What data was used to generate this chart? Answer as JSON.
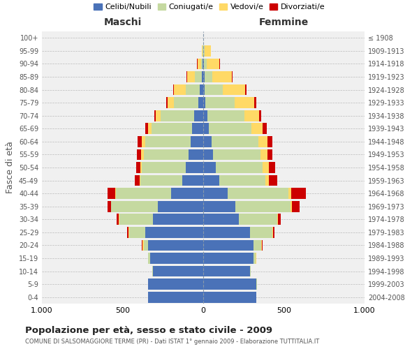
{
  "age_groups": [
    "0-4",
    "5-9",
    "10-14",
    "15-19",
    "20-24",
    "25-29",
    "30-34",
    "35-39",
    "40-44",
    "45-49",
    "50-54",
    "55-59",
    "60-64",
    "65-69",
    "70-74",
    "75-79",
    "80-84",
    "85-89",
    "90-94",
    "95-99",
    "100+"
  ],
  "birth_years": [
    "2004-2008",
    "1999-2003",
    "1994-1998",
    "1989-1993",
    "1984-1988",
    "1979-1983",
    "1974-1978",
    "1969-1973",
    "1964-1968",
    "1959-1963",
    "1954-1958",
    "1949-1953",
    "1944-1948",
    "1939-1943",
    "1934-1938",
    "1929-1933",
    "1924-1928",
    "1919-1923",
    "1914-1918",
    "1909-1913",
    "≤ 1908"
  ],
  "colors": {
    "celibe": "#4A72B8",
    "coniugato": "#C5D9A0",
    "vedovo": "#FFD966",
    "divorziato": "#CC0000"
  },
  "maschi": {
    "celibe": [
      340,
      340,
      310,
      330,
      340,
      360,
      310,
      280,
      200,
      130,
      110,
      90,
      80,
      70,
      55,
      30,
      20,
      10,
      5,
      2,
      0
    ],
    "coniugato": [
      1,
      2,
      5,
      10,
      30,
      100,
      210,
      290,
      340,
      260,
      270,
      280,
      280,
      250,
      210,
      150,
      90,
      40,
      10,
      3,
      0
    ],
    "vedovo": [
      0,
      0,
      0,
      2,
      5,
      5,
      2,
      3,
      5,
      5,
      10,
      15,
      20,
      20,
      30,
      40,
      70,
      50,
      20,
      5,
      0
    ],
    "divorziato": [
      0,
      0,
      0,
      2,
      5,
      5,
      15,
      20,
      50,
      30,
      25,
      25,
      25,
      20,
      10,
      10,
      5,
      3,
      2,
      0,
      0
    ]
  },
  "femmine": {
    "nubile": [
      330,
      330,
      290,
      310,
      310,
      290,
      220,
      200,
      150,
      100,
      80,
      60,
      50,
      35,
      25,
      15,
      10,
      8,
      5,
      2,
      0
    ],
    "coniugata": [
      1,
      3,
      5,
      15,
      50,
      140,
      240,
      340,
      380,
      285,
      290,
      295,
      290,
      265,
      230,
      180,
      110,
      50,
      15,
      5,
      0
    ],
    "vedova": [
      0,
      0,
      0,
      2,
      5,
      5,
      5,
      8,
      15,
      20,
      35,
      45,
      60,
      70,
      90,
      120,
      140,
      120,
      80,
      40,
      2
    ],
    "divorziata": [
      0,
      0,
      0,
      2,
      5,
      5,
      15,
      50,
      90,
      55,
      40,
      30,
      30,
      25,
      15,
      15,
      8,
      5,
      2,
      0,
      0
    ]
  },
  "title": "Popolazione per età, sesso e stato civile - 2009",
  "subtitle": "COMUNE DI SALSOMAGGIORE TERME (PR) - Dati ISTAT 1° gennaio 2009 - Elaborazione TUTTITALIA.IT",
  "ylabel_left": "Fasce di età",
  "xlabel_left": "Maschi",
  "xlabel_right": "Femmine",
  "xlim": 1000,
  "legend_labels": [
    "Celibi/Nubili",
    "Coniugati/e",
    "Vedovi/e",
    "Divorziati/e"
  ],
  "bg_color": "#FFFFFF",
  "grid_color": "#CCCCCC",
  "bar_height": 0.85
}
